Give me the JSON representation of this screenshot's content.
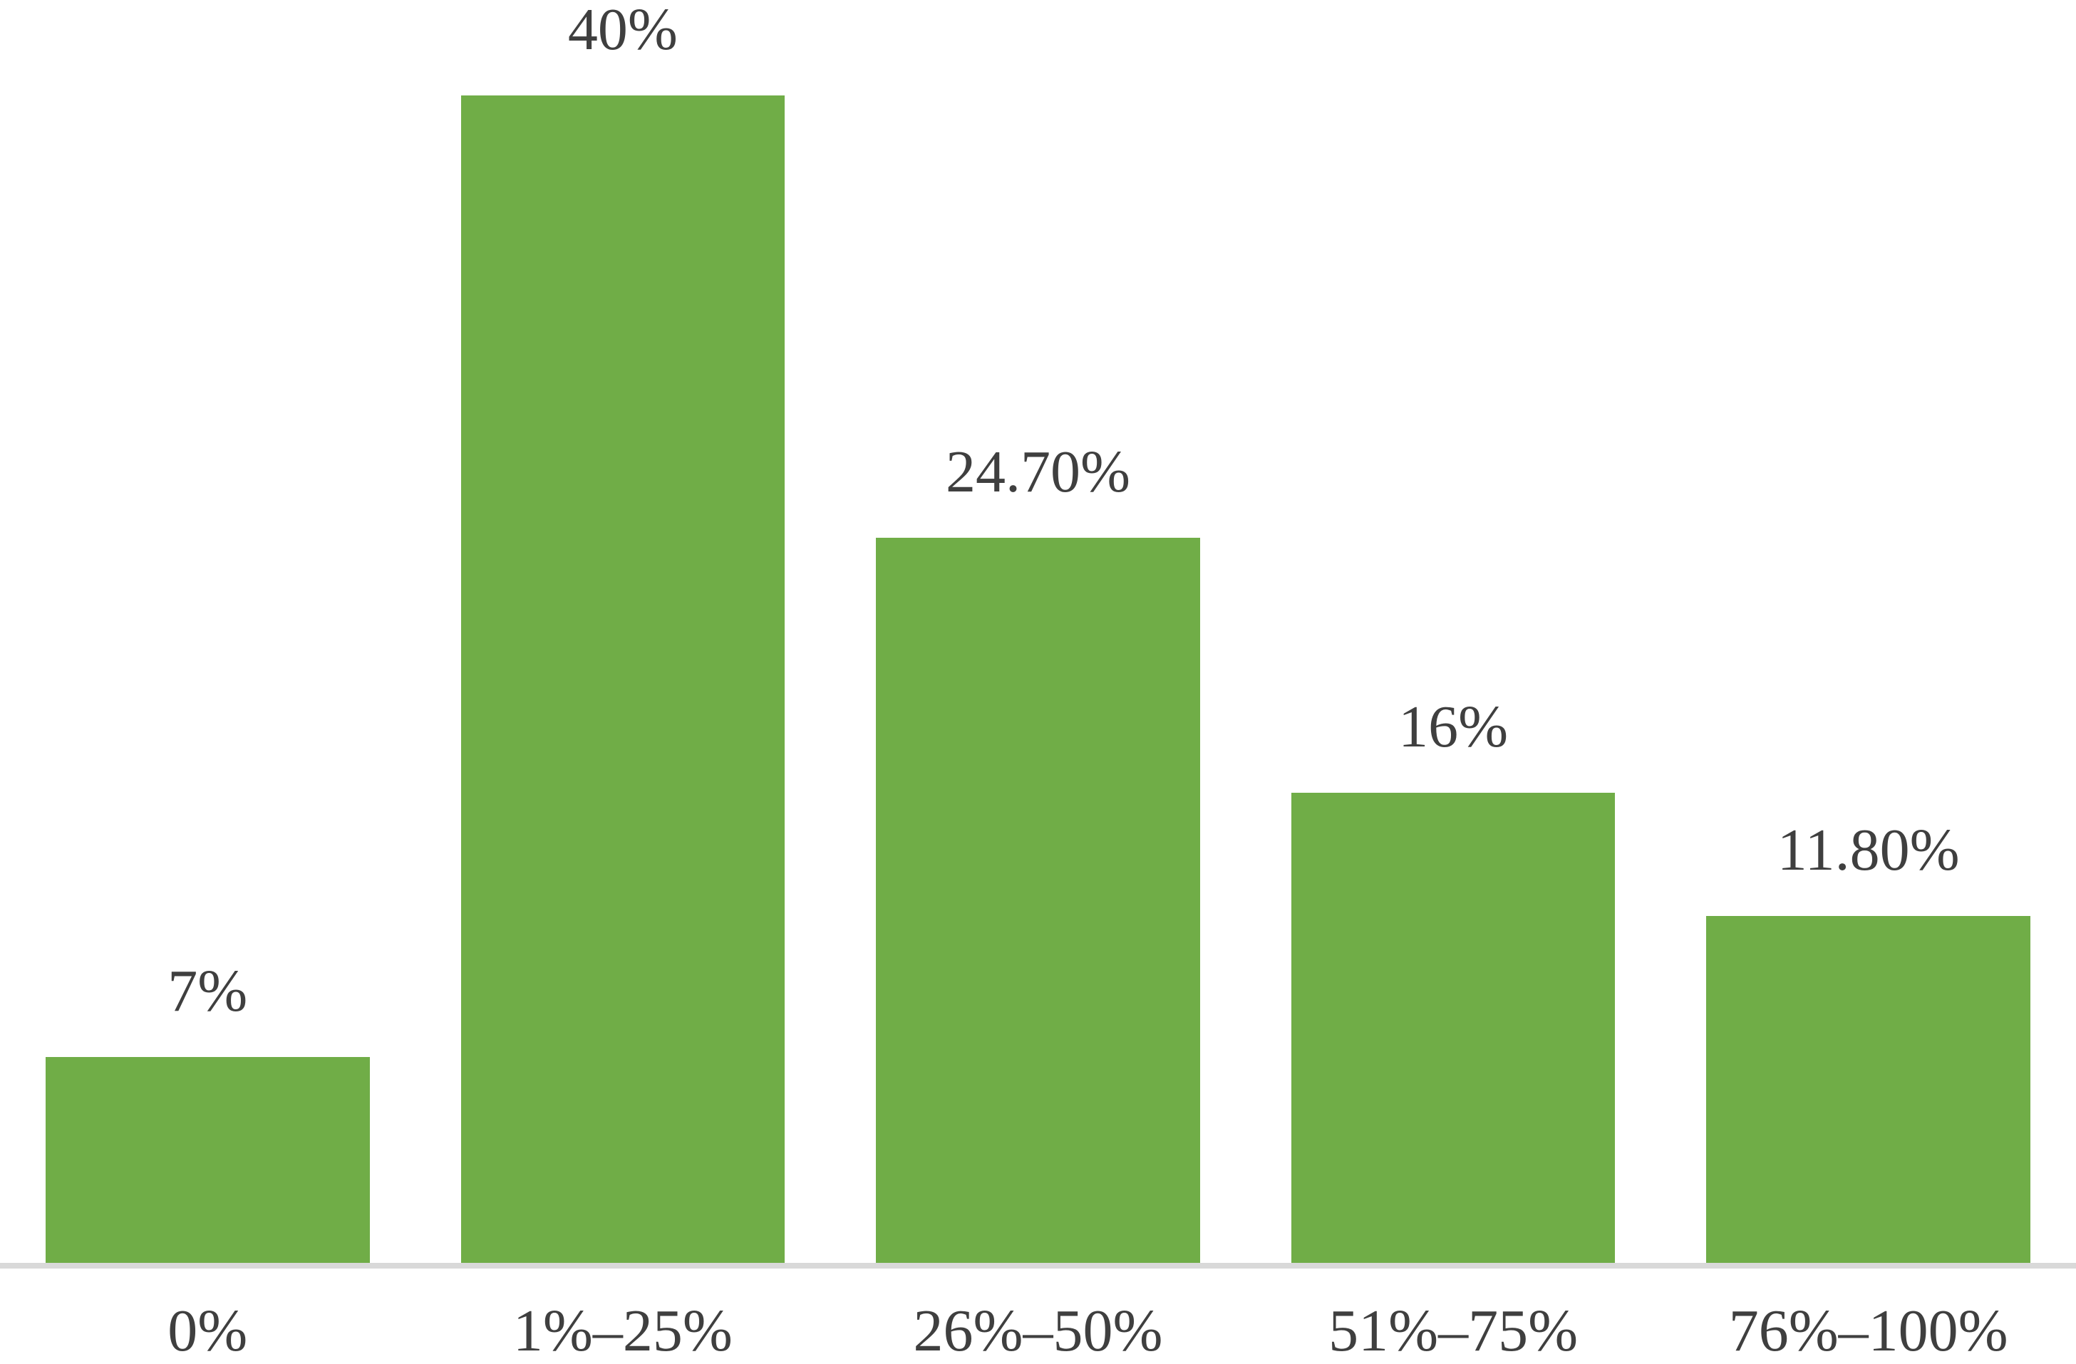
{
  "chart": {
    "background_color": "#ffffff",
    "bar_color": "#70AD47",
    "axis_line_color": "#d9d9d9",
    "label_color": "#3f3f3f"
  },
  "chart_data": {
    "type": "bar",
    "categories": [
      "0%",
      "1%–25%",
      "26%–50%",
      "51%–75%",
      "76%–100%"
    ],
    "values": [
      7,
      40,
      24.7,
      16,
      11.8
    ],
    "value_labels": [
      "7%",
      "40%",
      "24.70%",
      "16%",
      "11.80%"
    ],
    "series_name": "",
    "ylim": [
      0,
      43
    ],
    "grid": false,
    "legend": false,
    "y_axis_visible": false,
    "data_label_position": "outside-end",
    "bar_color": "#70AD47"
  }
}
